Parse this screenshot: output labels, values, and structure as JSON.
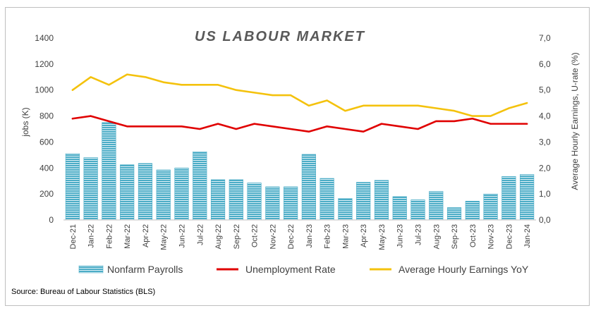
{
  "chart_data": {
    "type": "bar",
    "title": "US LABOUR MARKET",
    "source": "Source: Bureau of Labour Statistics (BLS)",
    "ylabel_left": "jobs (K)",
    "ylabel_right": "Average Hourly Earnings, U-rate (%)",
    "ylim_left": [
      0,
      1400
    ],
    "ylim_right": [
      0,
      7
    ],
    "yticks_left": [
      "0",
      "200",
      "400",
      "600",
      "800",
      "1000",
      "1200",
      "1400"
    ],
    "yticks_right": [
      "0,0",
      "1,0",
      "2,0",
      "3,0",
      "4,0",
      "5,0",
      "6,0",
      "7,0"
    ],
    "grid": false,
    "legend_position": "bottom",
    "categories": [
      "Dec-21",
      "Jan-22",
      "Feb-22",
      "Mar-22",
      "Apr-22",
      "May-22",
      "Jun-22",
      "Jul-22",
      "Aug-22",
      "Sep-22",
      "Oct-22",
      "Nov-22",
      "Dec-22",
      "Jan-23",
      "Feb-23",
      "Mar-23",
      "Apr-23",
      "May-23",
      "Jun-23",
      "Jul-23",
      "Aug-23",
      "Sep-23",
      "Oct-23",
      "Nov-23",
      "Dec-23",
      "Jan-24"
    ],
    "series": [
      {
        "name": "Nonfarm Payrolls",
        "kind": "bar",
        "axis": "left",
        "color": "#4bacc6",
        "values": [
          510,
          480,
          750,
          425,
          435,
          385,
          400,
          525,
          310,
          310,
          285,
          255,
          255,
          505,
          320,
          165,
          290,
          305,
          180,
          155,
          220,
          95,
          145,
          200,
          335,
          350
        ]
      },
      {
        "name": "Unemployment Rate",
        "kind": "line",
        "axis": "right",
        "color": "#e00000",
        "values": [
          3.9,
          4.0,
          3.8,
          3.6,
          3.6,
          3.6,
          3.6,
          3.5,
          3.7,
          3.5,
          3.7,
          3.6,
          3.5,
          3.4,
          3.6,
          3.5,
          3.4,
          3.7,
          3.6,
          3.5,
          3.8,
          3.8,
          3.9,
          3.7,
          3.7,
          3.7
        ]
      },
      {
        "name": "Average Hourly Earnings YoY",
        "kind": "line",
        "axis": "right",
        "color": "#f4c20d",
        "values": [
          5.0,
          5.5,
          5.2,
          5.6,
          5.5,
          5.3,
          5.2,
          5.2,
          5.2,
          5.0,
          4.9,
          4.8,
          4.8,
          4.4,
          4.6,
          4.2,
          4.4,
          4.4,
          4.4,
          4.4,
          4.3,
          4.2,
          4.0,
          4.0,
          4.3,
          4.5
        ]
      }
    ]
  }
}
